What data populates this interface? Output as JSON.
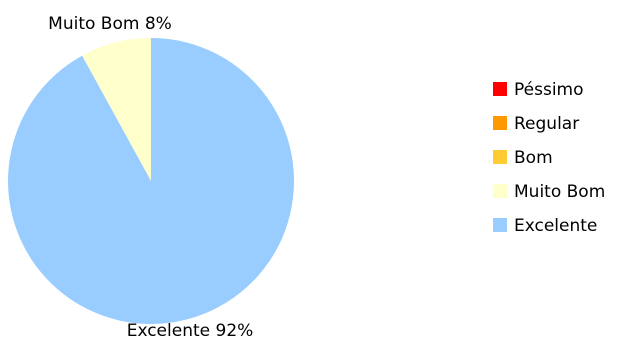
{
  "chart_data": {
    "type": "pie",
    "categories": [
      "Péssimo",
      "Regular",
      "Bom",
      "Muito Bom",
      "Excelente"
    ],
    "values": [
      0,
      0,
      0,
      8,
      92
    ],
    "colors": [
      "#ff0000",
      "#ff9900",
      "#ffcc33",
      "#ffffcc",
      "#99ccff"
    ],
    "slice_labels": [
      "",
      "",
      "",
      "Muito Bom 8%",
      "Excelente 92%"
    ],
    "legend_position": "right"
  }
}
